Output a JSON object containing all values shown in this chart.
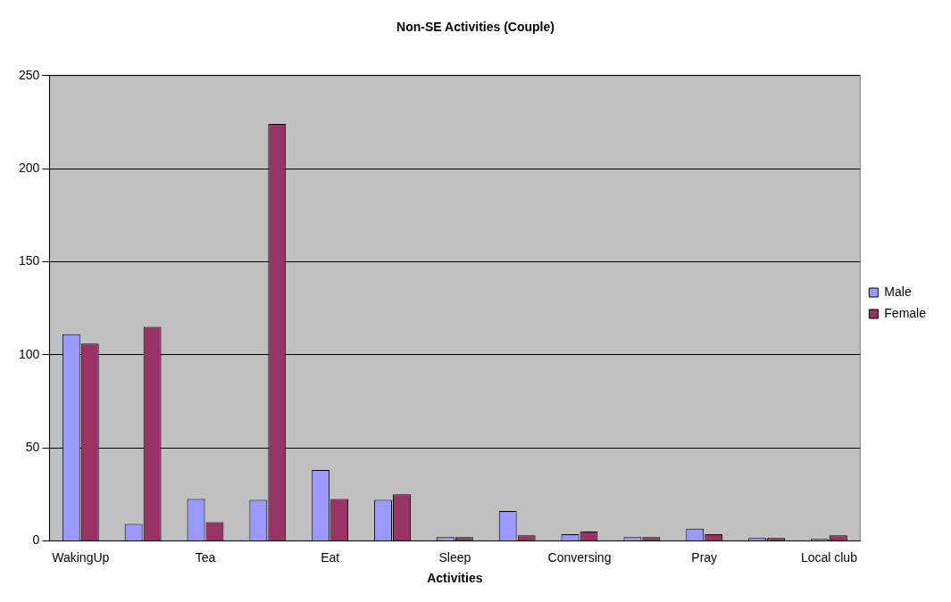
{
  "chart_data": {
    "type": "bar",
    "title": "Non-SE Activities (Couple)",
    "xlabel": "Activities",
    "categories": [
      "WakingUp",
      null,
      "Tea",
      null,
      "Eat",
      null,
      "Sleep",
      null,
      "Conversing",
      null,
      "Pray",
      null,
      "Local club"
    ],
    "series": [
      {
        "name": "Male",
        "color": "#9999ff",
        "values": [
          111,
          9,
          22.5,
          22,
          38,
          22,
          2,
          16,
          3.5,
          2,
          6.5,
          1.5,
          1
        ]
      },
      {
        "name": "Female",
        "color": "#993366",
        "values": [
          106,
          115,
          10,
          224,
          22.5,
          25,
          2,
          3,
          5,
          2,
          3.5,
          1.5,
          3
        ]
      }
    ],
    "ylim": [
      0,
      250
    ],
    "yticks": [
      0,
      50,
      100,
      150,
      200,
      250
    ],
    "grid": "y",
    "legend": "right"
  }
}
